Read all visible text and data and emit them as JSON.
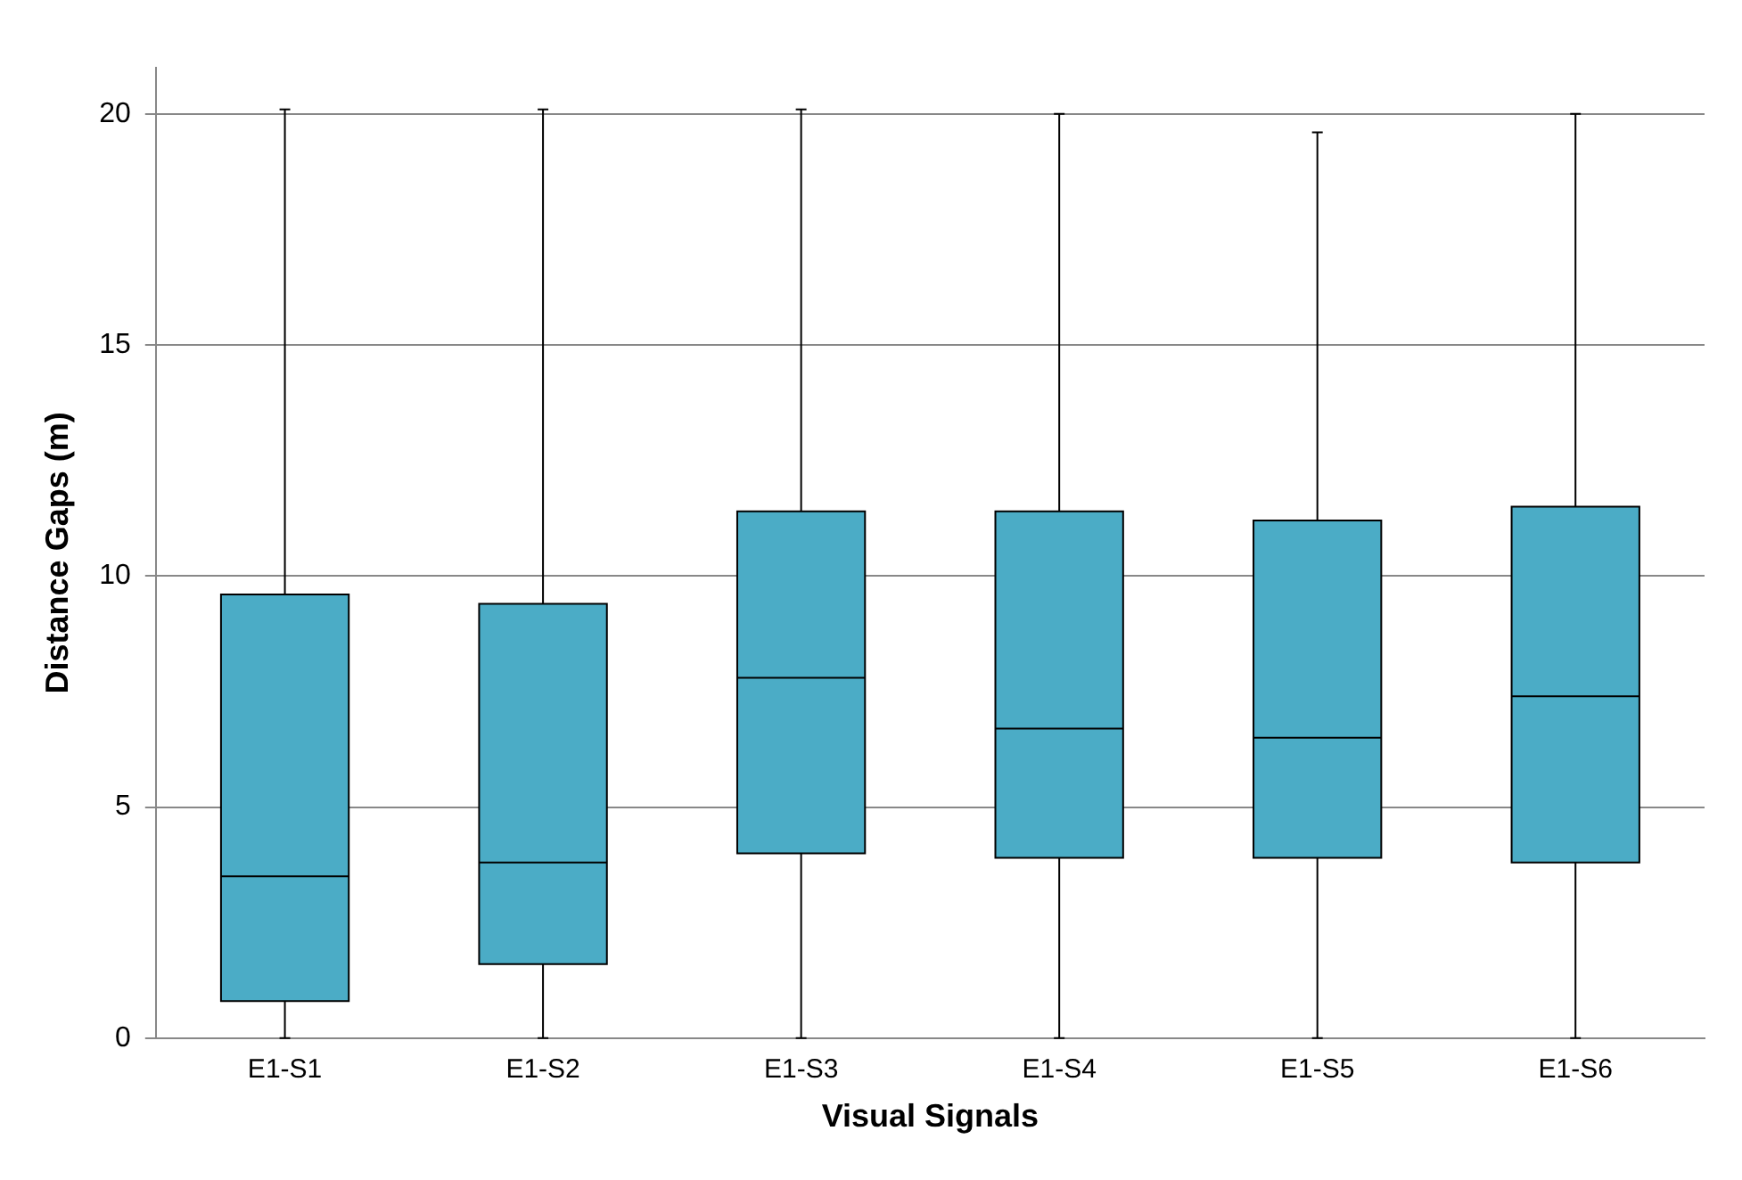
{
  "chart_data": {
    "type": "box",
    "xlabel": "Visual Signals",
    "ylabel": "Distance Gaps (m)",
    "categories": [
      "E1-S1",
      "E1-S2",
      "E1-S3",
      "E1-S4",
      "E1-S5",
      "E1-S6"
    ],
    "color": "#4bacc6",
    "boxes": [
      {
        "low": 0,
        "q1": 0.8,
        "median": 3.5,
        "q3": 9.6,
        "high": 20.1
      },
      {
        "low": 0,
        "q1": 1.6,
        "median": 3.8,
        "q3": 9.4,
        "high": 20.1
      },
      {
        "low": 0,
        "q1": 4.0,
        "median": 7.8,
        "q3": 11.4,
        "high": 20.1
      },
      {
        "low": 0,
        "q1": 3.9,
        "median": 6.7,
        "q3": 11.4,
        "high": 20.0
      },
      {
        "low": 0,
        "q1": 3.9,
        "median": 6.5,
        "q3": 11.2,
        "high": 19.6
      },
      {
        "low": 0,
        "q1": 3.8,
        "median": 7.4,
        "q3": 11.5,
        "high": 20.0
      }
    ],
    "ylim": [
      0,
      21
    ],
    "yticks": [
      0,
      5,
      10,
      15,
      20
    ],
    "grid": "y",
    "legend": false
  }
}
